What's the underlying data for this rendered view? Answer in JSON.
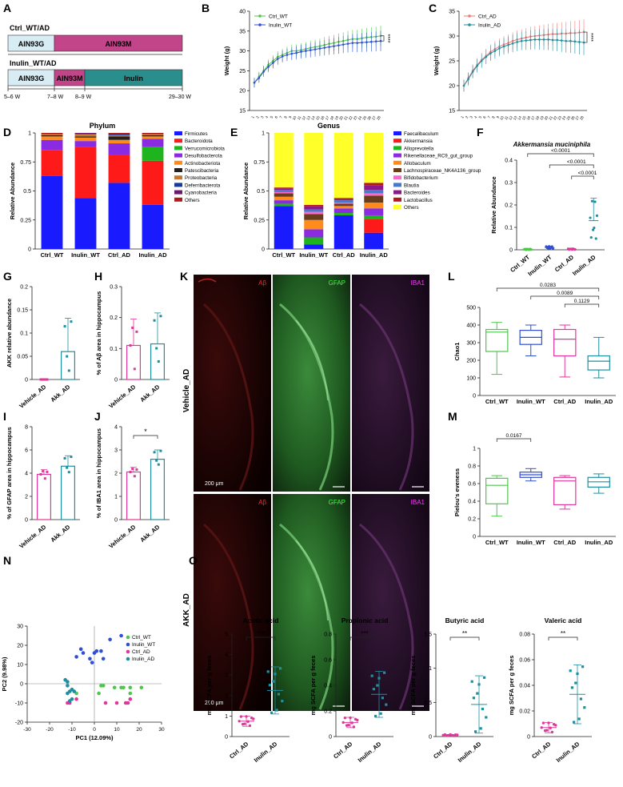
{
  "panels": {
    "A": {
      "label": "A",
      "group1_title": "Ctrl_WT/AD",
      "group2_title": "Inulin_WT/AD",
      "seg_ain93g": "AIN93G",
      "seg_ain93m": "AIN93M",
      "seg_inulin": "Inulin",
      "ticks": [
        "5–6 W",
        "7–8 W",
        "8–9 W",
        "29–30 W"
      ]
    },
    "B": {
      "label": "B",
      "ylabel": "Weight (g)",
      "legend": [
        "Ctrl_WT",
        "Inulin_WT"
      ],
      "sig": "****"
    },
    "C": {
      "label": "C",
      "ylabel": "Weight (g)",
      "legend": [
        "Ctrl_AD",
        "Inulin_AD"
      ],
      "sig": "****"
    },
    "D": {
      "label": "D",
      "title": "Phylum",
      "ylabel": "Relative Abundance",
      "legend": [
        "Firmicutes",
        "Bacteroidota",
        "Verrucomicrobiota",
        "Desulfobacterota",
        "Actinobacteriota",
        "Patescibacteria",
        "Proteobacteria",
        "Deferribacterota",
        "Cyanobacteria",
        "Others"
      ]
    },
    "E": {
      "label": "E",
      "title": "Genus",
      "ylabel": "Relative Abundance",
      "legend": [
        "Faecalibaculum",
        "Akkermansia",
        "Alloprevotella",
        "Rikenellaceae_RC9_gut_group",
        "Allobaculum",
        "Lachnospiraceae_NK4A136_group",
        "Bifidobacterium",
        "Blautia",
        "Bacteroides",
        "Lactobacillus",
        "Others"
      ]
    },
    "F": {
      "label": "F",
      "title": "Akkermansia muciniphila",
      "ylabel": "Relative Abundance",
      "pvals": [
        "<0.0001",
        "<0.0001",
        "<0.0001"
      ]
    },
    "G": {
      "label": "G",
      "ylabel": "AKK relative abundance"
    },
    "H": {
      "label": "H",
      "ylabel": "% of Aβ area in hippocampus"
    },
    "I": {
      "label": "I",
      "ylabel": "% of GFAP area in hippocampus"
    },
    "J": {
      "label": "J",
      "ylabel": "% of IBA1 area in hippocampus",
      "sig": "*"
    },
    "K": {
      "label": "K",
      "channels": [
        "Aβ",
        "GFAP",
        "IBA1"
      ],
      "row1": "Vehicle_AD",
      "row2": "AKK_AD",
      "scale": "200 μm"
    },
    "L": {
      "label": "L",
      "ylabel": "Chao1",
      "pvals": [
        "0.0283",
        "0.0089",
        "0.1129"
      ]
    },
    "M": {
      "label": "M",
      "ylabel": "Pielou's eveness",
      "pvals": [
        "0.0167"
      ]
    },
    "N": {
      "label": "N",
      "xlabel": "PC1 (12.09%)",
      "ylabel": "PC2 (9.98%)",
      "legend": [
        "Ctrl_WT",
        "Inulin_WT",
        "Ctrl_AD",
        "Inulin_AD"
      ]
    },
    "O": {
      "label": "O",
      "ylabel": "mg SCFA per g feces",
      "titles": [
        "Acetic acid",
        "Propionic acid",
        "Butyric acid",
        "Valeric acid"
      ],
      "sigs": [
        "***",
        "***",
        "**",
        "**"
      ],
      "groups": [
        "Ctrl_AD",
        "Inulin_AD"
      ]
    }
  },
  "colors": {
    "green": "#4cc74a",
    "blue": "#2f4fd4",
    "pink": "#e0379a",
    "teal": "#1f8fa0",
    "salmon": "#f07a78",
    "magenta": "#c2458a",
    "lightblue": "#d7ecf3",
    "tealdark": "#2a8e8c"
  },
  "chart_data": [
    {
      "id": "B",
      "type": "line",
      "ylabel": "Weight (g)",
      "ylim": [
        15,
        40
      ],
      "yticks": [
        15,
        20,
        25,
        30,
        35,
        40
      ],
      "series": [
        {
          "name": "Ctrl_WT",
          "values": [
            22,
            23.5,
            25,
            26.5,
            27.5,
            28.5,
            29,
            29.5,
            30,
            30,
            30.2,
            30.5,
            30.8,
            31,
            31.2,
            31.5,
            31.8,
            32,
            32.3,
            32.5,
            32.8,
            33,
            33,
            33.2,
            33.4,
            33.5,
            33.6,
            33.8
          ]
        },
        {
          "name": "Inulin_WT",
          "values": [
            22,
            23.2,
            24.8,
            26,
            27,
            28,
            28.6,
            29,
            29.3,
            29.5,
            29.8,
            30,
            30.2,
            30.4,
            30.6,
            30.8,
            31,
            31.2,
            31.4,
            31.6,
            31.8,
            32,
            32,
            32.1,
            32.2,
            32.3,
            32.4,
            32.5
          ]
        }
      ]
    },
    {
      "id": "C",
      "type": "line",
      "ylabel": "Weight (g)",
      "ylim": [
        15,
        35
      ],
      "yticks": [
        15,
        20,
        25,
        30,
        35
      ],
      "series": [
        {
          "name": "Ctrl_AD",
          "values": [
            20,
            21.5,
            23,
            24.2,
            25.2,
            26,
            26.8,
            27.4,
            27.9,
            28.3,
            28.6,
            29,
            29.3,
            29.5,
            29.7,
            29.9,
            30,
            30.1,
            30.2,
            30.3,
            30.4,
            30.4,
            30.5,
            30.5,
            30.6,
            30.6,
            30.7,
            30.8
          ]
        },
        {
          "name": "Inulin_AD",
          "values": [
            20,
            21.3,
            22.8,
            24,
            25,
            25.8,
            26.5,
            27,
            27.5,
            27.9,
            28.2,
            28.5,
            28.8,
            29,
            29.1,
            29.2,
            29.3,
            29.3,
            29.3,
            29.3,
            29.2,
            29.2,
            29.1,
            29,
            29,
            28.9,
            28.8,
            28.7
          ]
        }
      ]
    },
    {
      "id": "D",
      "type": "bar",
      "title": "Phylum",
      "ylabel": "Relative Abundance",
      "ylim": [
        0,
        1
      ],
      "categories": [
        "Ctrl_WT",
        "Inulin_WT",
        "Ctrl_AD",
        "Inulin_AD"
      ],
      "series": [
        {
          "name": "Firmicutes",
          "values": [
            0.63,
            0.44,
            0.57,
            0.38
          ]
        },
        {
          "name": "Bacteroidota",
          "values": [
            0.22,
            0.44,
            0.24,
            0.38
          ]
        },
        {
          "name": "Verrucomicrobiota",
          "values": [
            0.0,
            0.0,
            0.0,
            0.12
          ]
        },
        {
          "name": "Desulfobacterota",
          "values": [
            0.09,
            0.05,
            0.1,
            0.07
          ]
        },
        {
          "name": "Actinobacteriota",
          "values": [
            0.03,
            0.03,
            0.03,
            0.02
          ]
        },
        {
          "name": "Patescibacteria",
          "values": [
            0.01,
            0.01,
            0.03,
            0.01
          ]
        },
        {
          "name": "Proteobacteria",
          "values": [
            0.01,
            0.02,
            0.01,
            0.01
          ]
        },
        {
          "name": "Deferribacterota",
          "values": [
            0.0,
            0.0,
            0.01,
            0.0
          ]
        },
        {
          "name": "Cyanobacteria",
          "values": [
            0.0,
            0.01,
            0.0,
            0.0
          ]
        },
        {
          "name": "Others",
          "values": [
            0.01,
            0.0,
            0.01,
            0.01
          ]
        }
      ]
    },
    {
      "id": "E",
      "type": "bar",
      "title": "Genus",
      "ylabel": "Relative Abundance",
      "ylim": [
        0,
        1
      ],
      "categories": [
        "Ctrl_WT",
        "Inulin_WT",
        "Ctrl_AD",
        "Inulin_AD"
      ],
      "series": [
        {
          "name": "Faecalibaculum",
          "values": [
            0.37,
            0.04,
            0.29,
            0.14
          ]
        },
        {
          "name": "Akkermansia",
          "values": [
            0.0,
            0.0,
            0.0,
            0.12
          ]
        },
        {
          "name": "Alloprevotella",
          "values": [
            0.02,
            0.06,
            0.02,
            0.03
          ]
        },
        {
          "name": "Rikenellaceae_RC9_gut_group",
          "values": [
            0.03,
            0.07,
            0.04,
            0.06
          ]
        },
        {
          "name": "Allobaculum",
          "values": [
            0.03,
            0.08,
            0.02,
            0.05
          ]
        },
        {
          "name": "Lachnospiraceae_NK4A136_group",
          "values": [
            0.03,
            0.05,
            0.02,
            0.06
          ]
        },
        {
          "name": "Bifidobacterium",
          "values": [
            0.01,
            0.02,
            0.01,
            0.02
          ]
        },
        {
          "name": "Blautia",
          "values": [
            0.02,
            0.02,
            0.02,
            0.03
          ]
        },
        {
          "name": "Bacteroides",
          "values": [
            0.01,
            0.03,
            0.01,
            0.04
          ]
        },
        {
          "name": "Lactobacillus",
          "values": [
            0.01,
            0.01,
            0.01,
            0.02
          ]
        },
        {
          "name": "Others",
          "values": [
            0.47,
            0.62,
            0.56,
            0.43
          ]
        }
      ]
    },
    {
      "id": "F",
      "type": "scatter",
      "title": "Akkermansia muciniphila",
      "ylabel": "Relative Abundance",
      "ylim": [
        0,
        0.4
      ],
      "yticks": [
        0,
        0.1,
        0.2,
        0.3,
        0.4
      ],
      "categories": [
        "Ctrl_WT",
        "Inulin_WT",
        "Ctrl_AD",
        "Inulin_AD"
      ],
      "means": [
        0.002,
        0.01,
        0.003,
        0.13
      ],
      "sd": [
        0.002,
        0.006,
        0.002,
        0.1
      ]
    },
    {
      "id": "G",
      "type": "bar",
      "ylabel": "AKK relative abundance",
      "ylim": [
        0,
        0.2
      ],
      "yticks": [
        0,
        0.05,
        0.1,
        0.15,
        0.2
      ],
      "categories": [
        "Vehicle_AD",
        "Akk_AD"
      ],
      "values": [
        0.0,
        0.06
      ],
      "sd": [
        0.0,
        0.072
      ]
    },
    {
      "id": "H",
      "type": "bar",
      "ylabel": "% of Aβ area in hippocampus",
      "ylim": [
        0,
        0.3
      ],
      "yticks": [
        0,
        0.1,
        0.2,
        0.3
      ],
      "categories": [
        "Vehicle_AD",
        "Akk_AD"
      ],
      "values": [
        0.11,
        0.115
      ],
      "sd": [
        0.085,
        0.1
      ]
    },
    {
      "id": "I",
      "type": "bar",
      "ylabel": "% of GFAP area in hippocampus",
      "ylim": [
        0,
        8
      ],
      "yticks": [
        0,
        2,
        4,
        6,
        8
      ],
      "categories": [
        "Vehicle_AD",
        "Akk_AD"
      ],
      "values": [
        3.9,
        4.6
      ],
      "sd": [
        0.4,
        0.9
      ]
    },
    {
      "id": "J",
      "type": "bar",
      "ylabel": "% of IBA1 area in hippocampus",
      "ylim": [
        0,
        4
      ],
      "yticks": [
        0,
        1,
        2,
        3,
        4
      ],
      "categories": [
        "Vehicle_AD",
        "Akk_AD"
      ],
      "values": [
        2.05,
        2.6
      ],
      "sd": [
        0.2,
        0.4
      ]
    },
    {
      "id": "L",
      "type": "box",
      "ylabel": "Chao1",
      "ylim": [
        0,
        500
      ],
      "yticks": [
        0,
        100,
        200,
        300,
        400,
        500
      ],
      "categories": [
        "Ctrl_WT",
        "Inulin_WT",
        "Ctrl_AD",
        "Inulin_AD"
      ],
      "boxes": [
        [
          120,
          250,
          360,
          375,
          415
        ],
        [
          225,
          290,
          330,
          370,
          400
        ],
        [
          105,
          225,
          320,
          375,
          400
        ],
        [
          100,
          145,
          195,
          225,
          330
        ]
      ]
    },
    {
      "id": "M",
      "type": "box",
      "ylabel": "Pielou's eveness",
      "ylim": [
        0,
        1
      ],
      "yticks": [
        0,
        0.2,
        0.4,
        0.6,
        0.8,
        1.0
      ],
      "categories": [
        "Ctrl_WT",
        "Inulin_WT",
        "Ctrl_AD",
        "Inulin_AD"
      ],
      "boxes": [
        [
          0.23,
          0.37,
          0.58,
          0.66,
          0.69
        ],
        [
          0.63,
          0.67,
          0.7,
          0.73,
          0.77
        ],
        [
          0.31,
          0.36,
          0.63,
          0.67,
          0.69
        ],
        [
          0.49,
          0.56,
          0.62,
          0.67,
          0.71
        ]
      ]
    },
    {
      "id": "N",
      "type": "scatter",
      "xlabel": "PC1 (12.09%)",
      "ylabel": "PC2 (9.98%)",
      "xlim": [
        -30,
        30
      ],
      "ylim": [
        -20,
        30
      ],
      "xticks": [
        -30,
        -20,
        -10,
        0,
        10,
        20,
        30
      ],
      "yticks": [
        -20,
        -10,
        0,
        10,
        20,
        30
      ],
      "series": [
        {
          "name": "Ctrl_WT",
          "points": [
            [
              -8,
              -5
            ],
            [
              2,
              -5
            ],
            [
              3,
              -1
            ],
            [
              9,
              -2
            ],
            [
              12,
              -2
            ],
            [
              13,
              -2
            ],
            [
              16,
              -2
            ],
            [
              16,
              -5
            ],
            [
              21,
              -2
            ],
            [
              4,
              -1
            ]
          ]
        },
        {
          "name": "Inulin_WT",
          "points": [
            [
              -8,
              14
            ],
            [
              -5,
              16
            ],
            [
              -2,
              13
            ],
            [
              0,
              16
            ],
            [
              1,
              17
            ],
            [
              3,
              17
            ],
            [
              4,
              13
            ],
            [
              -1,
              11
            ],
            [
              7,
              23
            ],
            [
              12,
              25
            ],
            [
              -6,
              18
            ]
          ]
        },
        {
          "name": "Ctrl_AD",
          "points": [
            [
              -12,
              -10
            ],
            [
              -8,
              -8
            ],
            [
              5,
              -10
            ],
            [
              10,
              -10
            ],
            [
              14,
              -10
            ],
            [
              15,
              -10
            ],
            [
              16,
              -8
            ],
            [
              -11,
              -10
            ]
          ]
        },
        {
          "name": "Inulin_AD",
          "points": [
            [
              -13,
              2
            ],
            [
              -12,
              -1
            ],
            [
              -11,
              -4
            ],
            [
              -10,
              -3
            ],
            [
              -12,
              -5
            ],
            [
              -9,
              -4
            ],
            [
              -11,
              -9
            ],
            [
              -10,
              -8
            ],
            [
              -12,
              1
            ]
          ]
        }
      ]
    },
    {
      "id": "O",
      "type": "bar",
      "charts": [
        {
          "title": "Acetic acid",
          "ylim": [
            0,
            5
          ],
          "yticks": [
            0,
            1,
            2,
            3,
            4,
            5
          ],
          "categories": [
            "Ctrl_AD",
            "Inulin_AD"
          ],
          "values": [
            0.75,
            2.25
          ],
          "sd": [
            0.25,
            1.15
          ]
        },
        {
          "title": "Propionic acid",
          "ylim": [
            0,
            0.8
          ],
          "yticks": [
            0,
            0.2,
            0.4,
            0.6,
            0.8
          ],
          "categories": [
            "Ctrl_AD",
            "Inulin_AD"
          ],
          "values": [
            0.11,
            0.33
          ],
          "sd": [
            0.04,
            0.18
          ]
        },
        {
          "title": "Butyric acid",
          "ylim": [
            0,
            1.5
          ],
          "yticks": [
            0,
            0.5,
            1.0,
            1.5
          ],
          "categories": [
            "Ctrl_AD",
            "Inulin_AD"
          ],
          "values": [
            0.02,
            0.47
          ],
          "sd": [
            0.01,
            0.42
          ]
        },
        {
          "title": "Valeric acid",
          "ylim": [
            0,
            0.08
          ],
          "yticks": [
            0,
            0.02,
            0.04,
            0.06,
            0.08
          ],
          "categories": [
            "Ctrl_AD",
            "Inulin_AD"
          ],
          "values": [
            0.007,
            0.033
          ],
          "sd": [
            0.004,
            0.023
          ]
        }
      ]
    }
  ]
}
